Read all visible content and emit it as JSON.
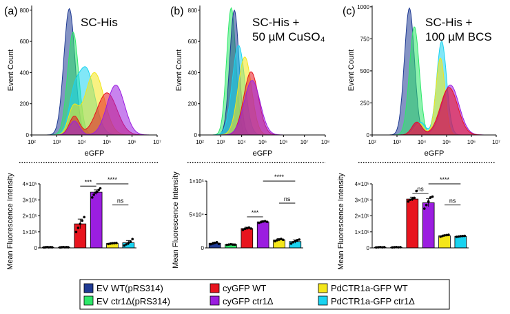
{
  "panels": [
    {
      "letter": "(a)",
      "condition_lines": [
        "SC-His"
      ]
    },
    {
      "letter": "(b)",
      "condition_lines": [
        "SC-His +",
        "50 µM CuSO₄"
      ]
    },
    {
      "letter": "(c)",
      "condition_lines": [
        "SC-His +",
        "100 µM BCS"
      ]
    }
  ],
  "legend": [
    {
      "label": "EV WT(pRS314)",
      "color": "#1F3A93"
    },
    {
      "label": "cyGFP WT",
      "color": "#E8141E"
    },
    {
      "label": "PdCTR1a-GFP WT",
      "color": "#F4E619"
    },
    {
      "label": "EV ctr1Δ(pRS314)",
      "color": "#2EE86A"
    },
    {
      "label": "cyGFP ctr1Δ",
      "color": "#9B1EE0"
    },
    {
      "label": "PdCTR1a-GFP ctr1Δ",
      "color": "#19D3F0"
    }
  ],
  "chart_data": [
    {
      "type": "area",
      "panel": "(a)",
      "xlabel": "eGFP",
      "ylabel": "Event Count",
      "xscale": "log10",
      "xlim": [
        100,
        10000000
      ],
      "xticks": [
        "10²",
        "10³",
        "10⁴",
        "10⁵",
        "10⁶",
        "10⁷"
      ],
      "ylim": [
        0,
        830
      ],
      "yticks": [
        0,
        200,
        400,
        600,
        800
      ],
      "series": [
        {
          "name": "EV WT(pRS314)",
          "peaks": [
            {
              "log_x": 3.5,
              "height": 810,
              "width": 0.22
            }
          ]
        },
        {
          "name": "EV ctr1Δ(pRS314)",
          "peaks": [
            {
              "log_x": 3.65,
              "height": 660,
              "width": 0.22
            }
          ]
        },
        {
          "name": "PdCTR1a-GFP ctr1Δ",
          "peaks": [
            {
              "log_x": 4.15,
              "height": 430,
              "width": 0.35
            },
            {
              "log_x": 3.65,
              "height": 150,
              "width": 0.2
            }
          ]
        },
        {
          "name": "PdCTR1a-GFP WT",
          "peaks": [
            {
              "log_x": 4.5,
              "height": 400,
              "width": 0.38
            },
            {
              "log_x": 3.65,
              "height": 160,
              "width": 0.2
            }
          ]
        },
        {
          "name": "cyGFP WT",
          "peaks": [
            {
              "log_x": 5.0,
              "height": 270,
              "width": 0.4
            },
            {
              "log_x": 3.7,
              "height": 120,
              "width": 0.2
            }
          ]
        },
        {
          "name": "cyGFP ctr1Δ",
          "peaks": [
            {
              "log_x": 5.35,
              "height": 320,
              "width": 0.35
            },
            {
              "log_x": 3.7,
              "height": 90,
              "width": 0.2
            }
          ]
        }
      ]
    },
    {
      "type": "area",
      "panel": "(b)",
      "xlabel": "eGFP",
      "ylabel": "Event Count",
      "xscale": "log10",
      "xlim": [
        100,
        100000000
      ],
      "xticks": [
        "10²",
        "10³",
        "10⁴",
        "10⁵",
        "10⁶",
        "10⁷",
        "10⁸"
      ],
      "ylim": [
        0,
        830
      ],
      "yticks": [
        0,
        200,
        400,
        600,
        800
      ],
      "series": [
        {
          "name": "EV ctr1Δ(pRS314)",
          "peaks": [
            {
              "log_x": 3.5,
              "height": 815,
              "width": 0.22
            }
          ]
        },
        {
          "name": "EV WT(pRS314)",
          "peaks": [
            {
              "log_x": 3.65,
              "height": 800,
              "width": 0.22
            }
          ]
        },
        {
          "name": "PdCTR1a-GFP ctr1Δ",
          "peaks": [
            {
              "log_x": 3.85,
              "height": 575,
              "width": 0.3
            }
          ]
        },
        {
          "name": "PdCTR1a-GFP WT",
          "peaks": [
            {
              "log_x": 4.15,
              "height": 500,
              "width": 0.32
            }
          ]
        },
        {
          "name": "cyGFP WT",
          "peaks": [
            {
              "log_x": 4.45,
              "height": 405,
              "width": 0.35
            }
          ]
        },
        {
          "name": "cyGFP ctr1Δ",
          "peaks": [
            {
              "log_x": 4.5,
              "height": 350,
              "width": 0.38
            }
          ]
        }
      ]
    },
    {
      "type": "area",
      "panel": "(c)",
      "xlabel": "eGFP",
      "ylabel": "Event Count",
      "xscale": "log10",
      "xlim": [
        100,
        10000000
      ],
      "xticks": [
        "10²",
        "10³",
        "10⁴",
        "10⁵",
        "10⁶",
        "10⁷"
      ],
      "ylim": [
        0,
        1010
      ],
      "yticks": [
        0,
        250,
        500,
        750,
        1000
      ],
      "series": [
        {
          "name": "EV WT(pRS314)",
          "peaks": [
            {
              "log_x": 3.5,
              "height": 990,
              "width": 0.2
            }
          ]
        },
        {
          "name": "EV ctr1Δ(pRS314)",
          "peaks": [
            {
              "log_x": 3.7,
              "height": 845,
              "width": 0.2
            }
          ]
        },
        {
          "name": "PdCTR1a-GFP ctr1Δ",
          "peaks": [
            {
              "log_x": 4.8,
              "height": 730,
              "width": 0.2
            },
            {
              "log_x": 3.95,
              "height": 100,
              "width": 0.2
            }
          ]
        },
        {
          "name": "PdCTR1a-GFP WT",
          "peaks": [
            {
              "log_x": 4.75,
              "height": 600,
              "width": 0.18
            },
            {
              "log_x": 3.9,
              "height": 90,
              "width": 0.2
            }
          ]
        },
        {
          "name": "cyGFP ctr1Δ",
          "peaks": [
            {
              "log_x": 5.15,
              "height": 390,
              "width": 0.35
            },
            {
              "log_x": 3.8,
              "height": 100,
              "width": 0.2
            }
          ]
        },
        {
          "name": "cyGFP WT",
          "peaks": [
            {
              "log_x": 5.1,
              "height": 370,
              "width": 0.35
            },
            {
              "log_x": 3.8,
              "height": 100,
              "width": 0.2
            }
          ]
        }
      ]
    },
    {
      "type": "bar",
      "panel": "(a)",
      "ylabel": "Mean Fluorescence Intensity",
      "ylim": [
        0,
        400000
      ],
      "yticks": [
        "0",
        "1×10⁵",
        "2×10⁵",
        "3×10⁵",
        "4×10⁵"
      ],
      "categories": [
        "EV WT(pRS314)",
        "EV ctr1Δ(pRS314)",
        "cyGFP WT",
        "cyGFP ctr1Δ",
        "PdCTR1a-GFP WT",
        "PdCTR1a-GFP ctr1Δ"
      ],
      "values": [
        4000,
        4000,
        150000,
        348000,
        28000,
        32000
      ],
      "errors": [
        1500,
        1500,
        30000,
        14000,
        4000,
        14000
      ],
      "points": [
        [
          3000,
          4000,
          5000,
          3500,
          4500,
          4000
        ],
        [
          3000,
          4000,
          5000,
          3500,
          4500,
          4000
        ],
        [
          100000,
          125000,
          150000,
          170000,
          192000
        ],
        [
          315000,
          332000,
          345000,
          350000,
          362000,
          372000
        ],
        [
          24000,
          27000,
          29000,
          30000,
          31000
        ],
        [
          15000,
          22000,
          30000,
          40000,
          55000
        ]
      ],
      "significance": [
        {
          "from": 2,
          "to": 3,
          "label": "***"
        },
        {
          "from": 3,
          "to": 5,
          "label": "****"
        },
        {
          "from": 4,
          "to": 5,
          "label": "ns"
        }
      ]
    },
    {
      "type": "bar",
      "panel": "(b)",
      "ylabel": "Mean Fluorescence Intensity",
      "ylim": [
        0,
        100000
      ],
      "yticks": [
        "0",
        "5×10⁴",
        "1×10⁵"
      ],
      "categories": [
        "EV WT(pRS314)",
        "EV ctr1Δ(pRS314)",
        "cyGFP WT",
        "cyGFP ctr1Δ",
        "PdCTR1a-GFP WT",
        "PdCTR1a-GFP ctr1Δ"
      ],
      "values": [
        7000,
        5000,
        29000,
        39000,
        12000,
        9500
      ],
      "errors": [
        1500,
        800,
        2000,
        1500,
        1800,
        2500
      ],
      "points": [
        [
          5500,
          6500,
          7500,
          8500,
          6000
        ],
        [
          4500,
          5000,
          5500,
          5000,
          4800
        ],
        [
          27000,
          28500,
          29500,
          30500,
          29000
        ],
        [
          37500,
          38500,
          39500,
          40000,
          39000
        ],
        [
          10000,
          11500,
          12500,
          13500,
          12000
        ],
        [
          6500,
          8500,
          10000,
          11500,
          12500
        ]
      ],
      "significance": [
        {
          "from": 2,
          "to": 3,
          "label": "***"
        },
        {
          "from": 3,
          "to": 5,
          "label": "****"
        },
        {
          "from": 4,
          "to": 5,
          "label": "ns"
        }
      ]
    },
    {
      "type": "bar",
      "panel": "(c)",
      "ylabel": "Mean Fluorescence Intensity",
      "ylim": [
        0,
        400000
      ],
      "yticks": [
        "0",
        "1×10⁵",
        "2×10⁵",
        "3×10⁵",
        "4×10⁵"
      ],
      "categories": [
        "EV WT(pRS314)",
        "EV ctr1Δ(pRS314)",
        "cyGFP WT",
        "cyGFP ctr1Δ",
        "PdCTR1a-GFP WT",
        "PdCTR1a-GFP ctr1Δ"
      ],
      "values": [
        4000,
        4000,
        305000,
        282000,
        76000,
        72000
      ],
      "errors": [
        1500,
        1500,
        12000,
        25000,
        5000,
        3000
      ],
      "points": [
        [
          3000,
          4000,
          5000,
          3500,
          4500
        ],
        [
          3000,
          4000,
          5000,
          3500,
          4500
        ],
        [
          290000,
          300000,
          306000,
          312000,
          355000
        ],
        [
          245000,
          268000,
          290000,
          315000,
          320000
        ],
        [
          70000,
          74000,
          78000,
          80000,
          82000
        ],
        [
          69000,
          71000,
          73000,
          74000,
          75000
        ]
      ],
      "significance": [
        {
          "from": 2,
          "to": 3,
          "label": "ns"
        },
        {
          "from": 3,
          "to": 5,
          "label": "****"
        },
        {
          "from": 4,
          "to": 5,
          "label": "ns"
        }
      ]
    }
  ]
}
